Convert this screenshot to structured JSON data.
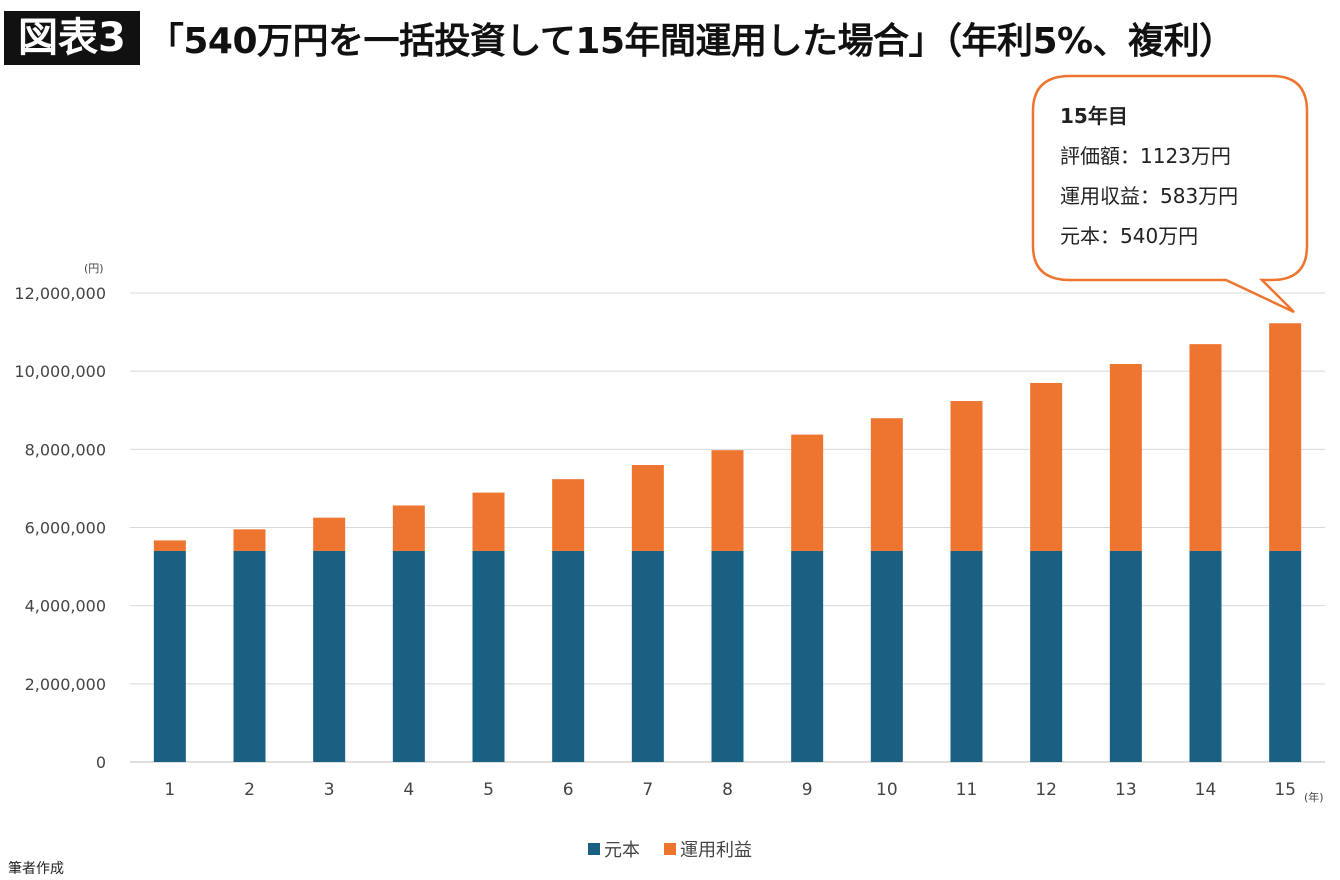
{
  "header": {
    "tag": "図表3",
    "title": "「540万円を一括投資して15年間運用した場合」（年利5%、複利）"
  },
  "callout": {
    "heading": "15年目",
    "lines": [
      "評価額：1123万円",
      "運用収益：583万円",
      "元本：540万円"
    ]
  },
  "source": "筆者作成",
  "colors": {
    "principal": "#1a6083",
    "profit": "#ed7530",
    "callout_border": "#ed7530"
  },
  "chart_data": {
    "type": "bar",
    "stacked": true,
    "title": "「540万円を一括投資して15年間運用した場合」（年利5%、複利）",
    "categories": [
      "1",
      "2",
      "3",
      "4",
      "5",
      "6",
      "7",
      "8",
      "9",
      "10",
      "11",
      "12",
      "13",
      "14",
      "15"
    ],
    "series": [
      {
        "name": "元本",
        "color": "#1a6083",
        "values": [
          5400000,
          5400000,
          5400000,
          5400000,
          5400000,
          5400000,
          5400000,
          5400000,
          5400000,
          5400000,
          5400000,
          5400000,
          5400000,
          5400000,
          5400000
        ]
      },
      {
        "name": "運用利益",
        "color": "#ed7530",
        "values": [
          270000,
          553500,
          851175,
          1163734,
          1491920,
          1836516,
          2198342,
          2578259,
          2977172,
          3396030,
          3835832,
          4297623,
          4782504,
          5291630,
          5826211
        ]
      }
    ],
    "yticks": [
      "0",
      "2,000,000",
      "4,000,000",
      "6,000,000",
      "8,000,000",
      "10,000,000",
      "12,000,000"
    ],
    "ylim": [
      0,
      12000000
    ],
    "yunit": "(円)",
    "xunit": "(年)",
    "grid": true,
    "legend_position": "bottom"
  }
}
